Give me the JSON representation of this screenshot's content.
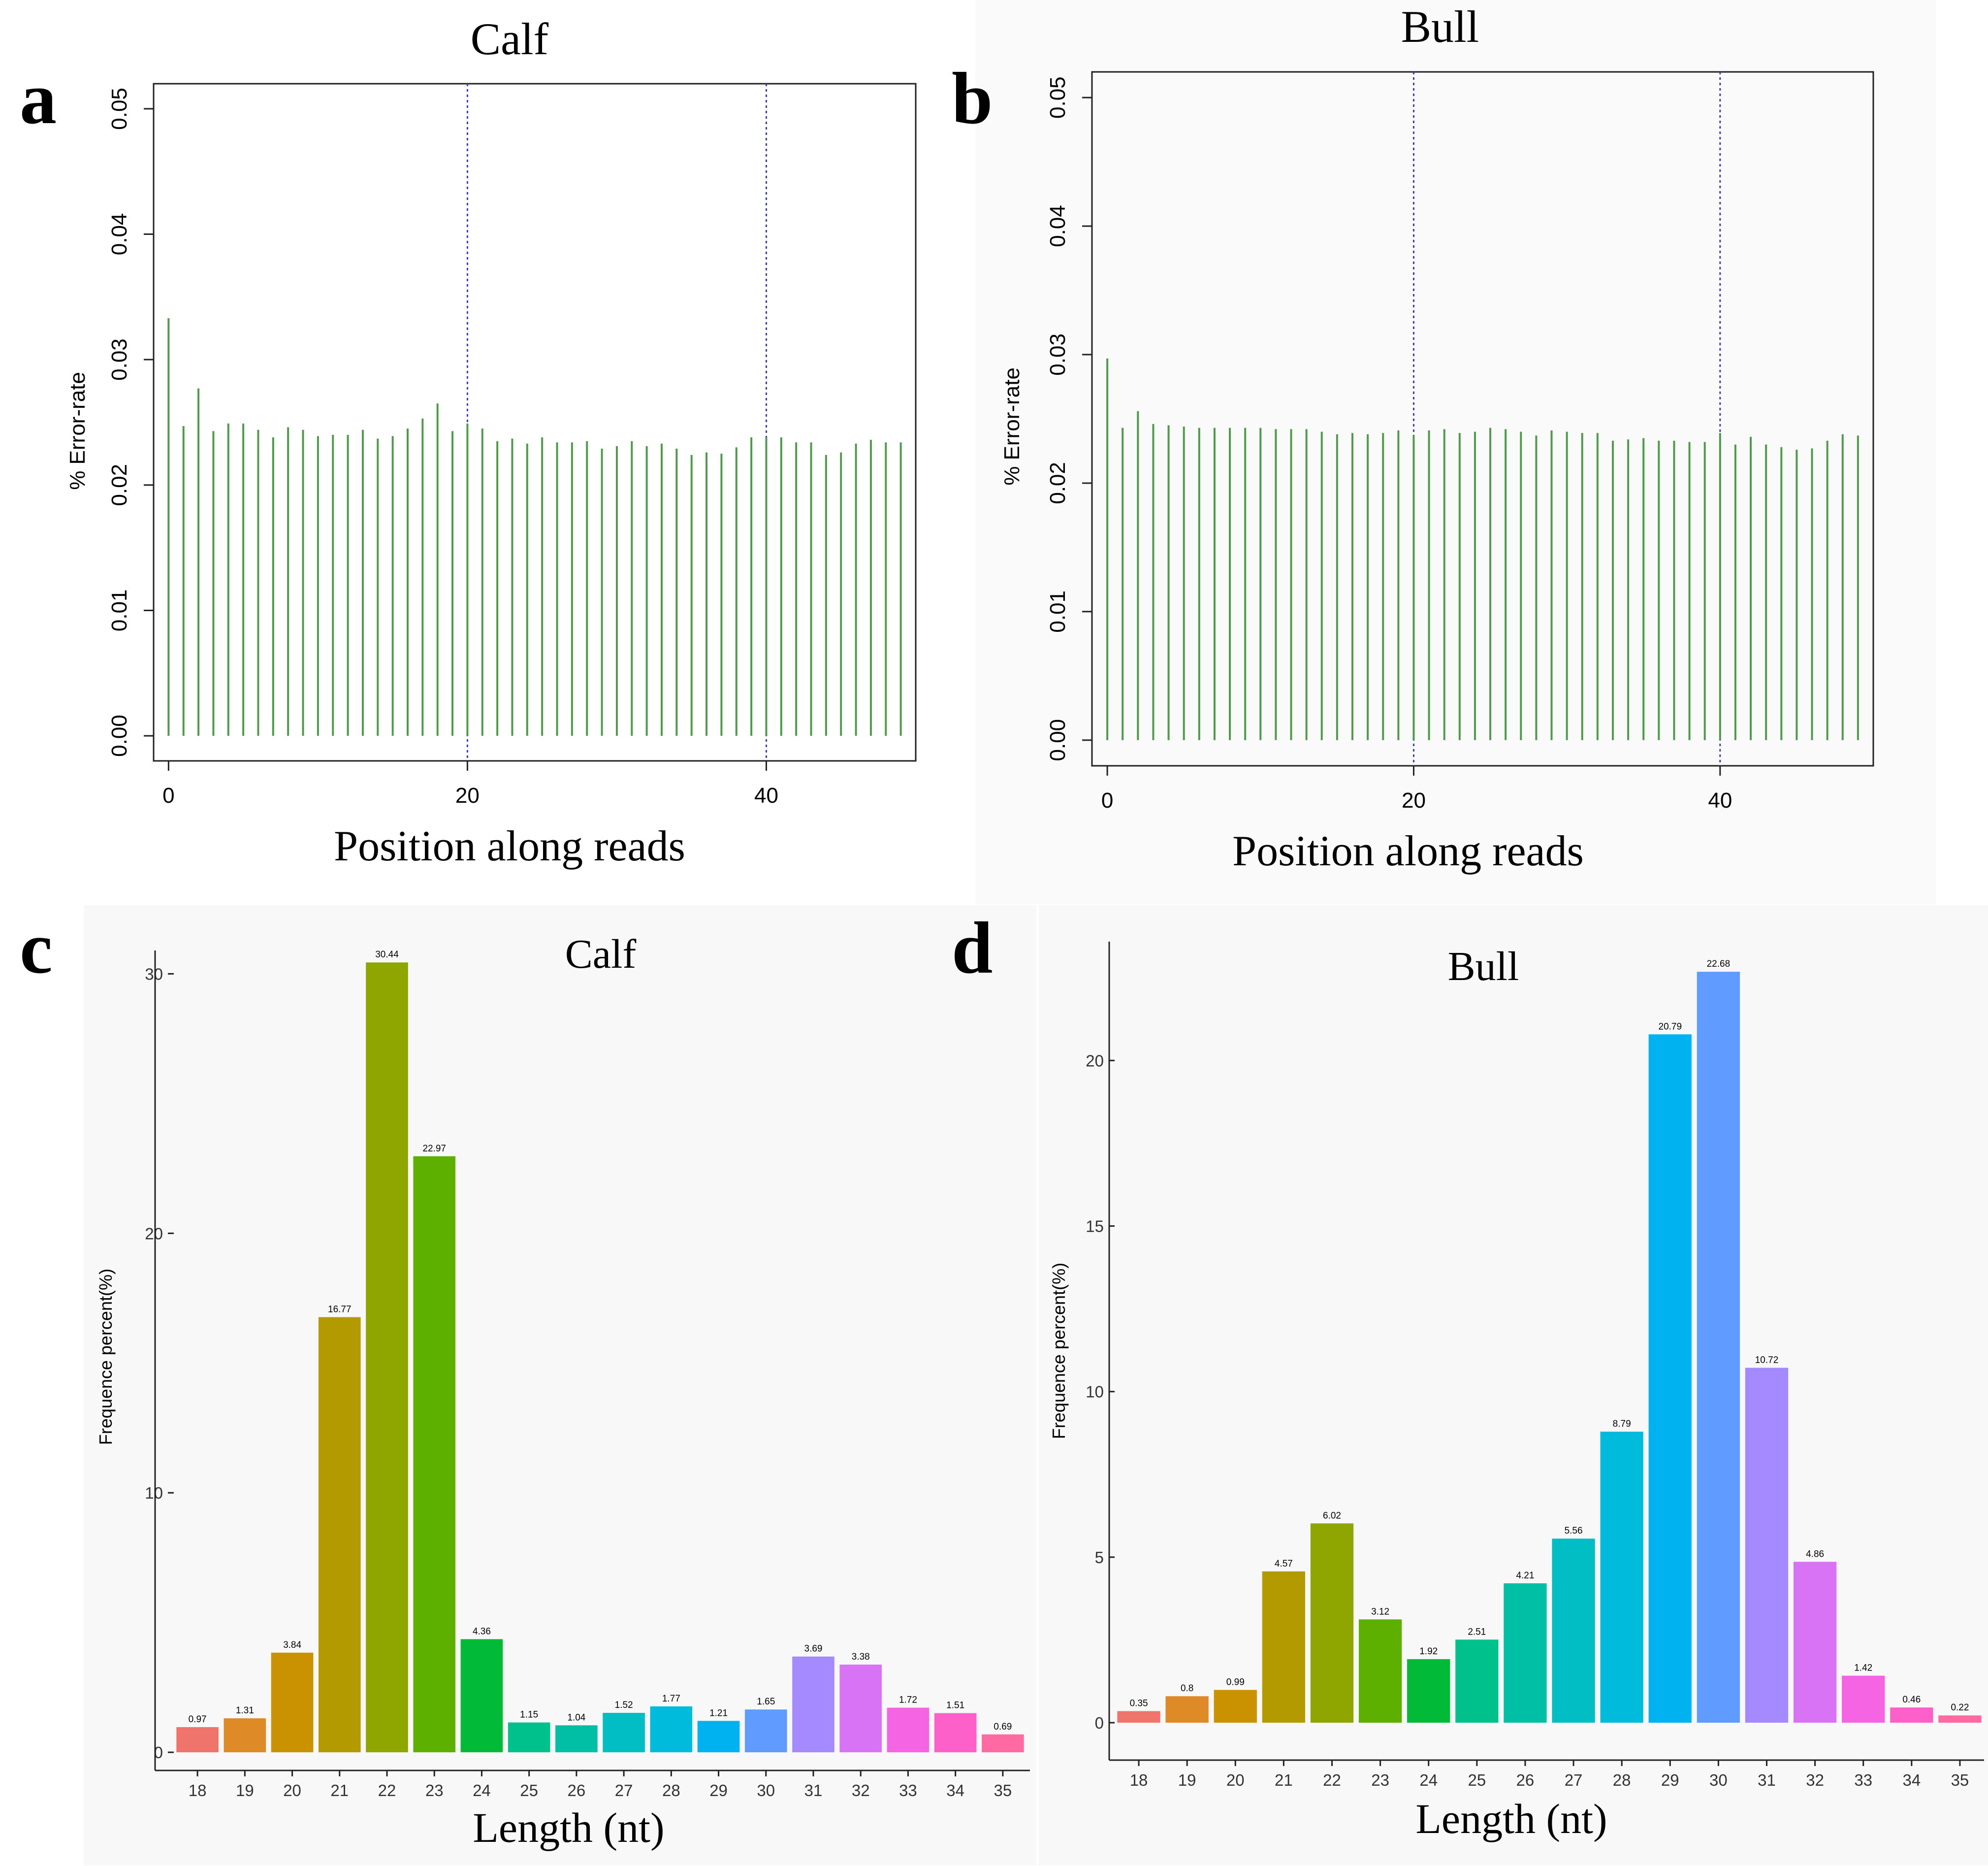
{
  "panels": {
    "a": {
      "letter": "a"
    },
    "b": {
      "letter": "b"
    },
    "c": {
      "letter": "c"
    },
    "d": {
      "letter": "d"
    }
  },
  "colors": {
    "stem": "#4f9a4b",
    "guide": "#3b3bbb",
    "axis": "#222222",
    "bars": [
      "#ef746b",
      "#de8a27",
      "#cb9200",
      "#b29a00",
      "#8fa600",
      "#5eb000",
      "#00ba38",
      "#00c08b",
      "#00bfa4",
      "#00bec4",
      "#00bbdc",
      "#00b3f0",
      "#609cff",
      "#a58aff",
      "#d873f5",
      "#f564e3",
      "#fd61c9",
      "#ff6aa3"
    ]
  },
  "chart_data": [
    {
      "panel": "a",
      "type": "bar",
      "style": "stem",
      "title": "Calf",
      "xlabel": "Position along reads",
      "ylabel": "% Error-rate",
      "xlim": [
        -1,
        50
      ],
      "ylim": [
        -0.002,
        0.052
      ],
      "xticks": [
        0,
        20,
        40
      ],
      "yticks": [
        0.0,
        0.01,
        0.02,
        0.03,
        0.04,
        0.05
      ],
      "ytick_labels": [
        "0.00",
        "0.01",
        "0.02",
        "0.03",
        "0.04",
        "0.05"
      ],
      "guide_lines_x": [
        20,
        40
      ],
      "x": [
        0,
        1,
        2,
        3,
        4,
        5,
        6,
        7,
        8,
        9,
        10,
        11,
        12,
        13,
        14,
        15,
        16,
        17,
        18,
        19,
        20,
        21,
        22,
        23,
        24,
        25,
        26,
        27,
        28,
        29,
        30,
        31,
        32,
        33,
        34,
        35,
        36,
        37,
        38,
        39,
        40,
        41,
        42,
        43,
        44,
        45,
        46,
        47,
        48,
        49
      ],
      "values": [
        0.0333,
        0.0247,
        0.0277,
        0.0243,
        0.0249,
        0.0249,
        0.0244,
        0.0238,
        0.0246,
        0.0244,
        0.0239,
        0.024,
        0.024,
        0.0244,
        0.0237,
        0.0239,
        0.0245,
        0.0253,
        0.0265,
        0.0243,
        0.0249,
        0.0245,
        0.0235,
        0.0237,
        0.0233,
        0.0238,
        0.0234,
        0.0234,
        0.0235,
        0.0229,
        0.0231,
        0.0235,
        0.0231,
        0.0233,
        0.0229,
        0.0224,
        0.0226,
        0.0225,
        0.023,
        0.0238,
        0.0238,
        0.0238,
        0.0234,
        0.0234,
        0.0224,
        0.0226,
        0.0233,
        0.0236,
        0.0234,
        0.0234
      ]
    },
    {
      "panel": "b",
      "type": "bar",
      "style": "stem",
      "title": "Bull",
      "xlabel": "Position along reads",
      "ylabel": "% Error-rate",
      "xlim": [
        -1,
        50
      ],
      "ylim": [
        -0.002,
        0.052
      ],
      "xticks": [
        0,
        20,
        40
      ],
      "yticks": [
        0.0,
        0.01,
        0.02,
        0.03,
        0.04,
        0.05
      ],
      "ytick_labels": [
        "0.00",
        "0.01",
        "0.02",
        "0.03",
        "0.04",
        "0.05"
      ],
      "guide_lines_x": [
        20,
        40
      ],
      "x": [
        0,
        1,
        2,
        3,
        4,
        5,
        6,
        7,
        8,
        9,
        10,
        11,
        12,
        13,
        14,
        15,
        16,
        17,
        18,
        19,
        20,
        21,
        22,
        23,
        24,
        25,
        26,
        27,
        28,
        29,
        30,
        31,
        32,
        33,
        34,
        35,
        36,
        37,
        38,
        39,
        40,
        41,
        42,
        43,
        44,
        45,
        46,
        47,
        48,
        49
      ],
      "values": [
        0.0297,
        0.0243,
        0.0256,
        0.0246,
        0.0245,
        0.0244,
        0.0243,
        0.0243,
        0.0243,
        0.0243,
        0.0243,
        0.0242,
        0.0242,
        0.0242,
        0.024,
        0.0238,
        0.0239,
        0.0238,
        0.0239,
        0.0241,
        0.0237,
        0.0241,
        0.0242,
        0.0239,
        0.024,
        0.0243,
        0.0242,
        0.024,
        0.0237,
        0.0241,
        0.024,
        0.0239,
        0.0239,
        0.0233,
        0.0234,
        0.0235,
        0.0233,
        0.0233,
        0.0232,
        0.0232,
        0.0239,
        0.023,
        0.0236,
        0.023,
        0.0228,
        0.0226,
        0.0227,
        0.0233,
        0.0238,
        0.0237
      ]
    },
    {
      "panel": "c",
      "type": "bar",
      "title": "Calf",
      "xlabel": "Length (nt)",
      "ylabel": "Frequence percent(%)",
      "ylim": [
        -0.7,
        30.9
      ],
      "yticks": [
        0,
        10,
        20,
        30
      ],
      "categories": [
        "18",
        "19",
        "20",
        "21",
        "22",
        "23",
        "24",
        "25",
        "26",
        "27",
        "28",
        "29",
        "30",
        "31",
        "32",
        "33",
        "34",
        "35"
      ],
      "values": [
        0.97,
        1.31,
        3.84,
        16.77,
        30.44,
        22.97,
        4.36,
        1.15,
        1.04,
        1.52,
        1.77,
        1.21,
        1.65,
        3.69,
        3.38,
        1.72,
        1.51,
        0.69
      ],
      "value_labels": [
        "0.97",
        "1.31",
        "3.84",
        "16.77",
        "30.44",
        "22.97",
        "4.36",
        "1.15",
        "1.04",
        "1.52",
        "1.77",
        "1.21",
        "1.65",
        "3.69",
        "3.38",
        "1.72",
        "1.51",
        "0.69"
      ]
    },
    {
      "panel": "d",
      "type": "bar",
      "title": "Bull",
      "xlabel": "Length (nt)",
      "ylabel": "Frequence percent(%)",
      "ylim": [
        -1.13,
        23.59
      ],
      "yticks": [
        0,
        5,
        10,
        15,
        20
      ],
      "categories": [
        "18",
        "19",
        "20",
        "21",
        "22",
        "23",
        "24",
        "25",
        "26",
        "27",
        "28",
        "29",
        "30",
        "31",
        "32",
        "33",
        "34",
        "35"
      ],
      "values": [
        0.35,
        0.8,
        0.99,
        4.57,
        6.02,
        3.12,
        1.92,
        2.51,
        4.21,
        5.56,
        8.79,
        20.79,
        22.68,
        10.72,
        4.86,
        1.42,
        0.46,
        0.22
      ],
      "value_labels": [
        "0.35",
        "0.8",
        "0.99",
        "4.57",
        "6.02",
        "3.12",
        "1.92",
        "2.51",
        "4.21",
        "5.56",
        "8.79",
        "20.79",
        "22.68",
        "10.72",
        "4.86",
        "1.42",
        "0.46",
        "0.22"
      ]
    }
  ]
}
